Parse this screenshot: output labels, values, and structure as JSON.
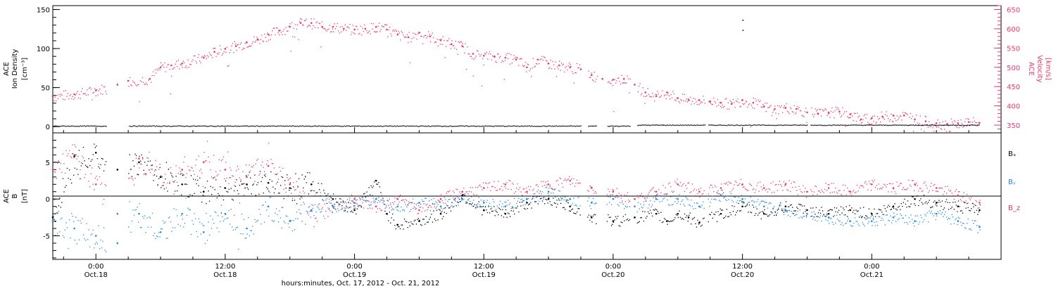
{
  "colors": {
    "axis": "#000000",
    "velocity": "#e8386a",
    "density": "#000000",
    "bx": "#000000",
    "by": "#1e88e5",
    "bz": "#e8386a"
  },
  "chart_data": [
    {
      "type": "scatter",
      "panel": "top",
      "ylabel": [
        "ACE",
        "Ion Density",
        "[cm⁻³]"
      ],
      "ylabel_right": [
        "ACE",
        "Velocity",
        "[km/s]"
      ],
      "ylim": [
        -8,
        155
      ],
      "yticks": [
        0,
        50,
        100,
        150
      ],
      "ylim_right": [
        330,
        660
      ],
      "yticks_right": [
        350,
        400,
        450,
        500,
        550,
        600,
        650
      ],
      "series": [
        {
          "axis": "right",
          "color": "velocity",
          "points": [
            [
              -4,
              425
            ],
            [
              -2,
              430
            ],
            [
              0,
              440
            ],
            [
              2,
              455
            ],
            [
              3,
              465
            ],
            [
              5,
              470
            ],
            [
              6,
              500
            ],
            [
              7,
              505
            ],
            [
              8,
              510
            ],
            [
              10,
              525
            ],
            [
              11,
              540
            ],
            [
              12,
              548
            ],
            [
              13,
              555
            ],
            [
              14,
              565
            ],
            [
              15,
              572
            ],
            [
              16,
              585
            ],
            [
              17,
              595
            ],
            [
              18,
              605
            ],
            [
              19,
              615
            ],
            [
              20,
              615
            ],
            [
              21,
              605
            ],
            [
              22,
              605
            ],
            [
              23,
              600
            ],
            [
              24,
              598
            ],
            [
              25,
              600
            ],
            [
              26,
              605
            ],
            [
              27,
              598
            ],
            [
              28,
              585
            ],
            [
              29,
              578
            ],
            [
              30,
              590
            ],
            [
              31,
              580
            ],
            [
              32,
              570
            ],
            [
              33,
              560
            ],
            [
              34,
              555
            ],
            [
              35,
              535
            ],
            [
              36,
              530
            ],
            [
              37,
              528
            ],
            [
              38,
              525
            ],
            [
              39,
              520
            ],
            [
              40,
              500
            ],
            [
              41,
              520
            ],
            [
              42,
              510
            ],
            [
              43,
              505
            ],
            [
              44,
              500
            ],
            [
              45,
              495
            ],
            [
              46,
              480
            ],
            [
              47,
              470
            ],
            [
              48,
              468
            ],
            [
              49,
              470
            ],
            [
              50,
              455
            ],
            [
              51,
              435
            ],
            [
              52,
              425
            ],
            [
              53,
              435
            ],
            [
              54,
              420
            ],
            [
              55,
              415
            ],
            [
              56,
              415
            ],
            [
              57,
              412
            ],
            [
              58,
              408
            ],
            [
              59,
              405
            ],
            [
              60,
              415
            ],
            [
              61,
              408
            ],
            [
              62,
              398
            ],
            [
              63,
              392
            ],
            [
              64,
              395
            ],
            [
              65,
              392
            ],
            [
              66,
              383
            ],
            [
              67,
              380
            ],
            [
              68,
              383
            ],
            [
              69,
              385
            ],
            [
              70,
              378
            ],
            [
              71,
              365
            ],
            [
              72,
              368
            ],
            [
              73,
              372
            ],
            [
              74,
              375
            ],
            [
              75,
              375
            ],
            [
              76,
              365
            ],
            [
              77,
              360
            ],
            [
              78,
              355
            ],
            [
              79,
              353
            ],
            [
              80,
              355
            ],
            [
              81,
              358
            ],
            [
              82,
              356
            ]
          ]
        },
        {
          "axis": "left",
          "color": "density",
          "points": [
            [
              -4,
              1
            ],
            [
              -2,
              1
            ],
            [
              4,
              1
            ],
            [
              10,
              1
            ],
            [
              20,
              1
            ],
            [
              30,
              1
            ],
            [
              40,
              1
            ],
            [
              50,
              1
            ],
            [
              55,
              1
            ],
            [
              60,
              1
            ],
            [
              70,
              1
            ],
            [
              80,
              1
            ],
            [
              82,
              1
            ]
          ],
          "outliers": [
            [
              60,
              137
            ],
            [
              60,
              124
            ]
          ]
        }
      ]
    },
    {
      "type": "scatter",
      "panel": "bottom",
      "ylabel": [
        "ACE",
        "B",
        "[nT]"
      ],
      "ylim": [
        -8.2,
        9
      ],
      "yticks": [
        -5,
        0,
        5
      ],
      "legend": [
        "Bₓ",
        "Bᵧ",
        "B_z"
      ],
      "series": [
        {
          "name": "Bₓ",
          "color": "bx",
          "points": [
            [
              -4,
              -2.5
            ],
            [
              -2,
              5.8
            ],
            [
              0,
              6.3
            ],
            [
              2,
              4
            ],
            [
              4,
              5
            ],
            [
              6,
              3
            ],
            [
              8,
              2
            ],
            [
              10,
              1
            ],
            [
              12,
              1.5
            ],
            [
              14,
              2
            ],
            [
              16,
              2.2
            ],
            [
              18,
              1.5
            ],
            [
              20,
              2
            ],
            [
              22,
              0
            ],
            [
              24,
              -1.5
            ],
            [
              26,
              2.5
            ],
            [
              27,
              -2
            ],
            [
              28,
              -3.5
            ],
            [
              30,
              -3
            ],
            [
              32,
              -2
            ],
            [
              34,
              0.5
            ],
            [
              36,
              -1.5
            ],
            [
              38,
              -2
            ],
            [
              40,
              -0.5
            ],
            [
              42,
              0
            ],
            [
              44,
              -1
            ],
            [
              46,
              -2.5
            ],
            [
              48,
              -3
            ],
            [
              50,
              -2.5
            ],
            [
              52,
              -2
            ],
            [
              53,
              -3
            ],
            [
              54,
              -2
            ],
            [
              55,
              -2.5
            ],
            [
              56,
              -3.2
            ],
            [
              58,
              -2
            ],
            [
              60,
              -1
            ],
            [
              62,
              -2
            ],
            [
              64,
              -1
            ],
            [
              66,
              -1.5
            ],
            [
              68,
              -2
            ],
            [
              70,
              -1.5
            ],
            [
              72,
              -2
            ],
            [
              74,
              -1
            ],
            [
              76,
              0
            ],
            [
              78,
              -0.5
            ],
            [
              80,
              -1
            ],
            [
              82,
              -1.5
            ]
          ]
        },
        {
          "name": "Bᵧ",
          "color": "by",
          "points": [
            [
              -4,
              -3
            ],
            [
              -2,
              -4
            ],
            [
              0,
              -5
            ],
            [
              2,
              -6
            ],
            [
              4,
              -2
            ],
            [
              6,
              -4.5
            ],
            [
              8,
              -2
            ],
            [
              10,
              -4.5
            ],
            [
              12,
              -2
            ],
            [
              14,
              -4
            ],
            [
              16,
              -1
            ],
            [
              18,
              -3
            ],
            [
              20,
              -1.5
            ],
            [
              22,
              -1
            ],
            [
              24,
              -0.5
            ],
            [
              26,
              0
            ],
            [
              28,
              -1
            ],
            [
              30,
              -0.5
            ],
            [
              32,
              -1
            ],
            [
              34,
              0
            ],
            [
              36,
              -0.5
            ],
            [
              38,
              -1
            ],
            [
              40,
              0
            ],
            [
              42,
              1
            ],
            [
              44,
              0
            ],
            [
              46,
              -0.5
            ],
            [
              48,
              0
            ],
            [
              50,
              -1
            ],
            [
              52,
              0
            ],
            [
              54,
              0
            ],
            [
              56,
              -1
            ],
            [
              58,
              0.5
            ],
            [
              60,
              0
            ],
            [
              62,
              -1
            ],
            [
              64,
              -1.5
            ],
            [
              66,
              -2
            ],
            [
              68,
              -2.5
            ],
            [
              70,
              -3
            ],
            [
              72,
              -3
            ],
            [
              74,
              -2.5
            ],
            [
              76,
              -3
            ],
            [
              78,
              -2
            ],
            [
              80,
              -3
            ],
            [
              82,
              -3.8
            ]
          ]
        },
        {
          "name": "B_z",
          "color": "bz",
          "points": [
            [
              -4,
              4
            ],
            [
              -2,
              6
            ],
            [
              0,
              2
            ],
            [
              2,
              -2
            ],
            [
              4,
              5.5
            ],
            [
              6,
              3
            ],
            [
              8,
              4
            ],
            [
              10,
              5
            ],
            [
              12,
              4
            ],
            [
              14,
              3
            ],
            [
              16,
              4.5
            ],
            [
              18,
              2
            ],
            [
              20,
              -1.5
            ],
            [
              22,
              -1
            ],
            [
              24,
              0
            ],
            [
              26,
              -1
            ],
            [
              28,
              0
            ],
            [
              30,
              -1.5
            ],
            [
              32,
              0
            ],
            [
              34,
              1
            ],
            [
              36,
              1.5
            ],
            [
              38,
              2
            ],
            [
              40,
              1
            ],
            [
              42,
              2
            ],
            [
              44,
              2.5
            ],
            [
              46,
              1.5
            ],
            [
              48,
              1
            ],
            [
              50,
              0
            ],
            [
              52,
              1
            ],
            [
              54,
              2
            ],
            [
              56,
              1
            ],
            [
              58,
              1.5
            ],
            [
              60,
              2
            ],
            [
              62,
              1.5
            ],
            [
              64,
              2
            ],
            [
              66,
              1
            ],
            [
              68,
              1.5
            ],
            [
              70,
              1
            ],
            [
              72,
              2
            ],
            [
              74,
              1.5
            ],
            [
              76,
              2
            ],
            [
              78,
              1.5
            ],
            [
              80,
              0.5
            ],
            [
              82,
              -0.5
            ]
          ]
        }
      ]
    }
  ],
  "x_axis": {
    "xlim": [
      -4,
      84
    ],
    "ticks": [
      {
        "t": 0,
        "time": "0:00",
        "date": "Oct.18"
      },
      {
        "t": 12,
        "time": "12:00",
        "date": "Oct.18"
      },
      {
        "t": 24,
        "time": "0:00",
        "date": "Oct.19"
      },
      {
        "t": 36,
        "time": "12:00",
        "date": "Oct.19"
      },
      {
        "t": 48,
        "time": "0:00",
        "date": "Oct.20"
      },
      {
        "t": 60,
        "time": "12:00",
        "date": "Oct.20"
      },
      {
        "t": 72,
        "time": "0:00",
        "date": "Oct.21"
      }
    ],
    "xlabel": "hours:minutes, Oct. 17, 2012 - Oct. 21, 2012"
  }
}
